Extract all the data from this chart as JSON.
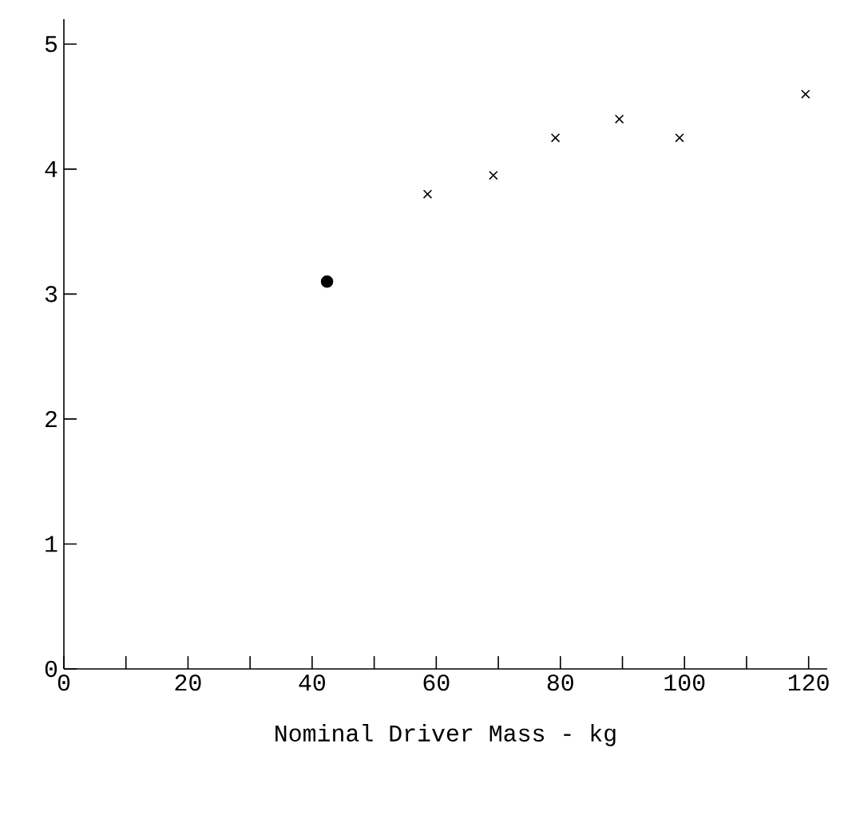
{
  "chart_data": {
    "type": "scatter",
    "xlabel": "Nominal Driver Mass - kg",
    "series": [
      {
        "color": "#000000",
        "marker": "circle",
        "x": [
          42.4
        ],
        "values": [
          3.1
        ]
      },
      {
        "color": "#000000",
        "marker": "cross",
        "x": [
          58.6,
          69.2,
          79.2,
          89.5,
          99.2,
          119.5
        ],
        "values": [
          3.8,
          3.95,
          4.25,
          4.4,
          4.25,
          4.6
        ]
      }
    ],
    "xlim": [
      0,
      123
    ],
    "ylim": [
      0,
      5.2
    ],
    "xticks": [
      0,
      {
        "value": 10,
        "label": null
      },
      20,
      {
        "value": 30,
        "label": null
      },
      40,
      {
        "value": 50,
        "label": null
      },
      60,
      {
        "value": 70,
        "label": null
      },
      80,
      {
        "value": 90,
        "label": null
      },
      100,
      {
        "value": 110,
        "label": null
      },
      120
    ],
    "yticks": [
      0,
      1,
      2,
      3,
      4,
      5
    ],
    "grid": false
  }
}
